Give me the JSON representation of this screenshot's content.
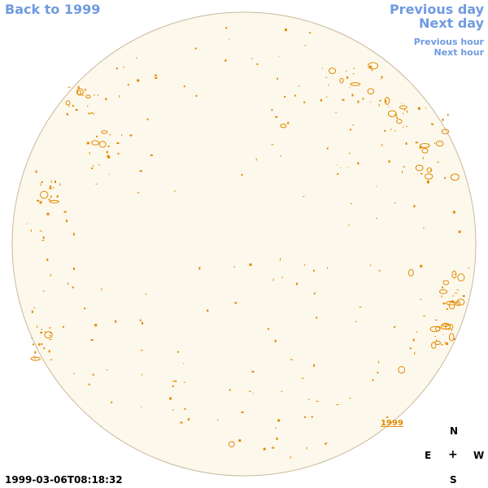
{
  "nav": {
    "back": "Back to 1999",
    "previous_day": "Previous day",
    "next_day": "Next day",
    "previous_hour": "Previous hour",
    "next_hour": "Next hour"
  },
  "disk": {
    "year_label": "1999",
    "fill_color": "#fdf8ec",
    "border_color": "#c8b99c",
    "contour_color": "#e08a00"
  },
  "compass": {
    "north": "N",
    "east": "E",
    "center": "+",
    "west": "W",
    "south": "S"
  },
  "timestamp": "1999-03-06T08:18:32"
}
